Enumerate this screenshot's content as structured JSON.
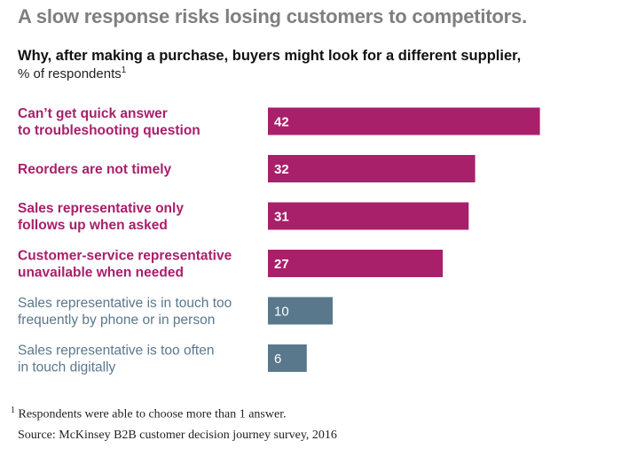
{
  "title": "A slow response risks losing customers to competitors.",
  "subtitle": "Why, after making a purchase, buyers might look for a different supplier,",
  "unit": "% of respondents",
  "unit_marker": "1",
  "footnote_marker": "1",
  "footnote": "Respondents were able to choose more than 1 answer.",
  "source": "Source: McKinsey B2B customer decision journey survey, 2016",
  "colors": {
    "primary": "#a8206a",
    "secondary": "#5a788c",
    "title": "#7f7f7f"
  },
  "chart_data": {
    "type": "bar",
    "orientation": "horizontal",
    "xlim": [
      0,
      62
    ],
    "categories": [
      [
        "Can’t get quick answer",
        "to troubleshooting question"
      ],
      [
        "Reorders are not timely"
      ],
      [
        "Sales representative only",
        "follows up when asked"
      ],
      [
        "Customer-service representative",
        "unavailable when needed"
      ],
      [
        "Sales representative is in touch too",
        "frequently by phone or in person"
      ],
      [
        "Sales representative is too often",
        "in touch digitally"
      ]
    ],
    "values": [
      42,
      32,
      31,
      27,
      10,
      6
    ],
    "highlight": [
      true,
      true,
      true,
      true,
      false,
      false
    ],
    "grid": false,
    "legend": "none"
  }
}
